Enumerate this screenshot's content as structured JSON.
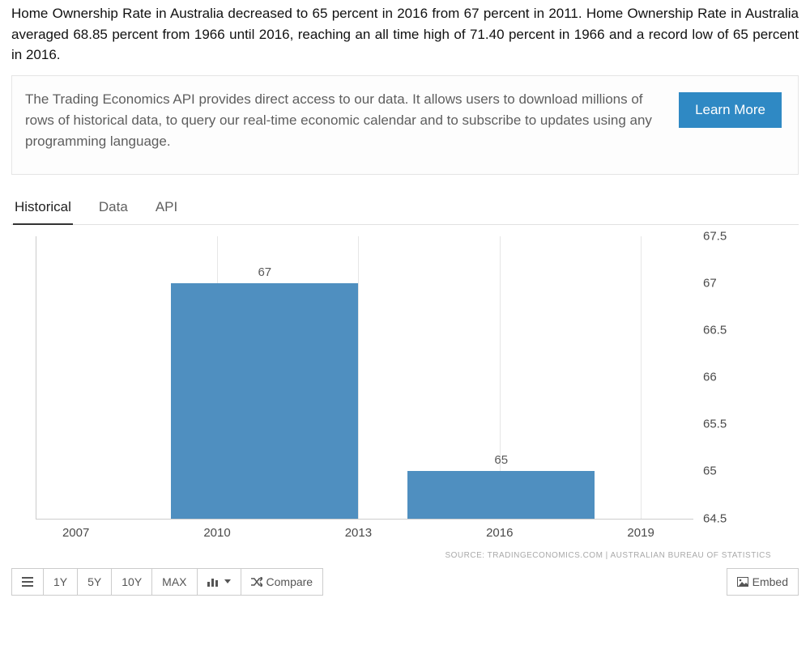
{
  "intro": "Home Ownership Rate in Australia decreased to 65 percent in 2016 from 67 percent in 2011. Home Ownership Rate in Australia averaged 68.85 percent from 1966 until 2016, reaching an all time high of 71.40 percent in 1966 and a record low of 65 percent in 2016.",
  "banner": {
    "text": "The Trading Economics API provides direct access to our data. It allows users to download millions of rows of historical data, to query our real-time economic calendar and to subscribe to updates using any programming language.",
    "cta": "Learn More"
  },
  "tabs": {
    "historical": "Historical",
    "data": "Data",
    "api": "API"
  },
  "chart": {
    "type": "bar",
    "y_min": 64.5,
    "y_max": 67.5,
    "y_step": 0.5,
    "y_ticks": [
      67.5,
      67,
      66.5,
      66,
      65.5,
      65,
      64.5
    ],
    "x_ticks": [
      {
        "label": "2007",
        "pos_pct": 6
      },
      {
        "label": "2010",
        "pos_pct": 27.5
      },
      {
        "label": "2013",
        "pos_pct": 49
      },
      {
        "label": "2016",
        "pos_pct": 70.5
      },
      {
        "label": "2019",
        "pos_pct": 92
      }
    ],
    "vgrid_pct": [
      27.5,
      49,
      70.5,
      92
    ],
    "bars": [
      {
        "label": "67",
        "value": 67,
        "left_pct": 20.5,
        "width_pct": 28.5
      },
      {
        "label": "65",
        "value": 65,
        "left_pct": 56.5,
        "width_pct": 28.5
      }
    ],
    "bar_color": "#4f8fc0",
    "grid_color": "#e6e6e6",
    "text_color": "#4a4a4a",
    "background": "#ffffff",
    "source": "SOURCE: TRADINGECONOMICS.COM | AUSTRALIAN BUREAU OF STATISTICS"
  },
  "toolbar": {
    "ranges": {
      "y1": "1Y",
      "y5": "5Y",
      "y10": "10Y",
      "max": "MAX"
    },
    "compare": "Compare",
    "embed": "Embed"
  }
}
